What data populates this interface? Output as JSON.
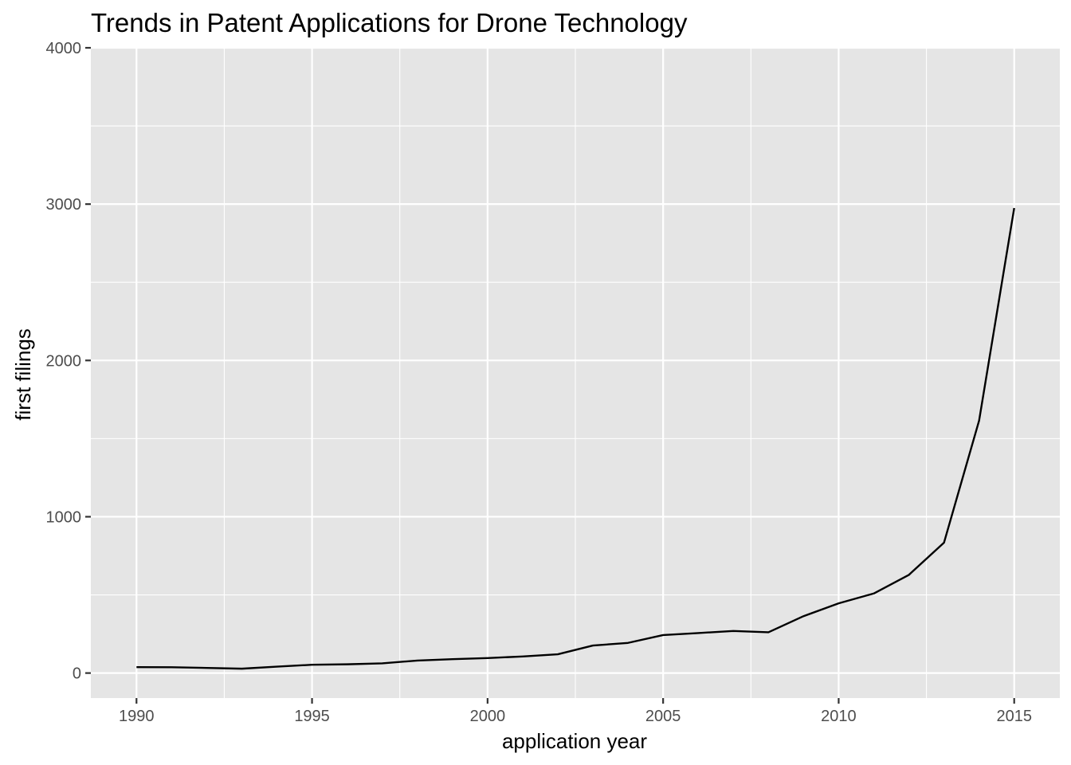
{
  "chart_data": {
    "type": "line",
    "title": "Trends in Patent Applications for Drone Technology",
    "xlabel": "application year",
    "ylabel": "first filings",
    "xlim": [
      1988.7,
      2016.3
    ],
    "ylim": [
      -160,
      4000
    ],
    "x_ticks": [
      1990,
      1995,
      2000,
      2005,
      2010,
      2015
    ],
    "y_ticks": [
      0,
      1000,
      2000,
      3000,
      4000
    ],
    "x_tick_labels": [
      "1990",
      "1995",
      "2000",
      "2005",
      "2010",
      "2015"
    ],
    "y_tick_labels": [
      "0",
      "1000",
      "2000",
      "3000",
      "4000"
    ],
    "grid": true,
    "legend": "none",
    "colors": {
      "panel": "#e5e5e5",
      "grid": "#ffffff",
      "line": "#000000",
      "tick_text": "#4d4d4d"
    },
    "series": [
      {
        "x": [
          1990,
          1991,
          1992,
          1993,
          1994,
          1995,
          1996,
          1997,
          1998,
          1999,
          2000,
          2001,
          2002,
          2003,
          2004,
          2005,
          2006,
          2007,
          2008,
          2009,
          2010,
          2011,
          2012,
          2013,
          2014,
          2015
        ],
        "values": [
          38,
          37,
          33,
          28,
          41,
          53,
          56,
          62,
          80,
          89,
          96,
          106,
          120,
          176,
          193,
          243,
          256,
          269,
          261,
          364,
          446,
          509,
          628,
          834,
          1615,
          2975
        ]
      }
    ]
  }
}
